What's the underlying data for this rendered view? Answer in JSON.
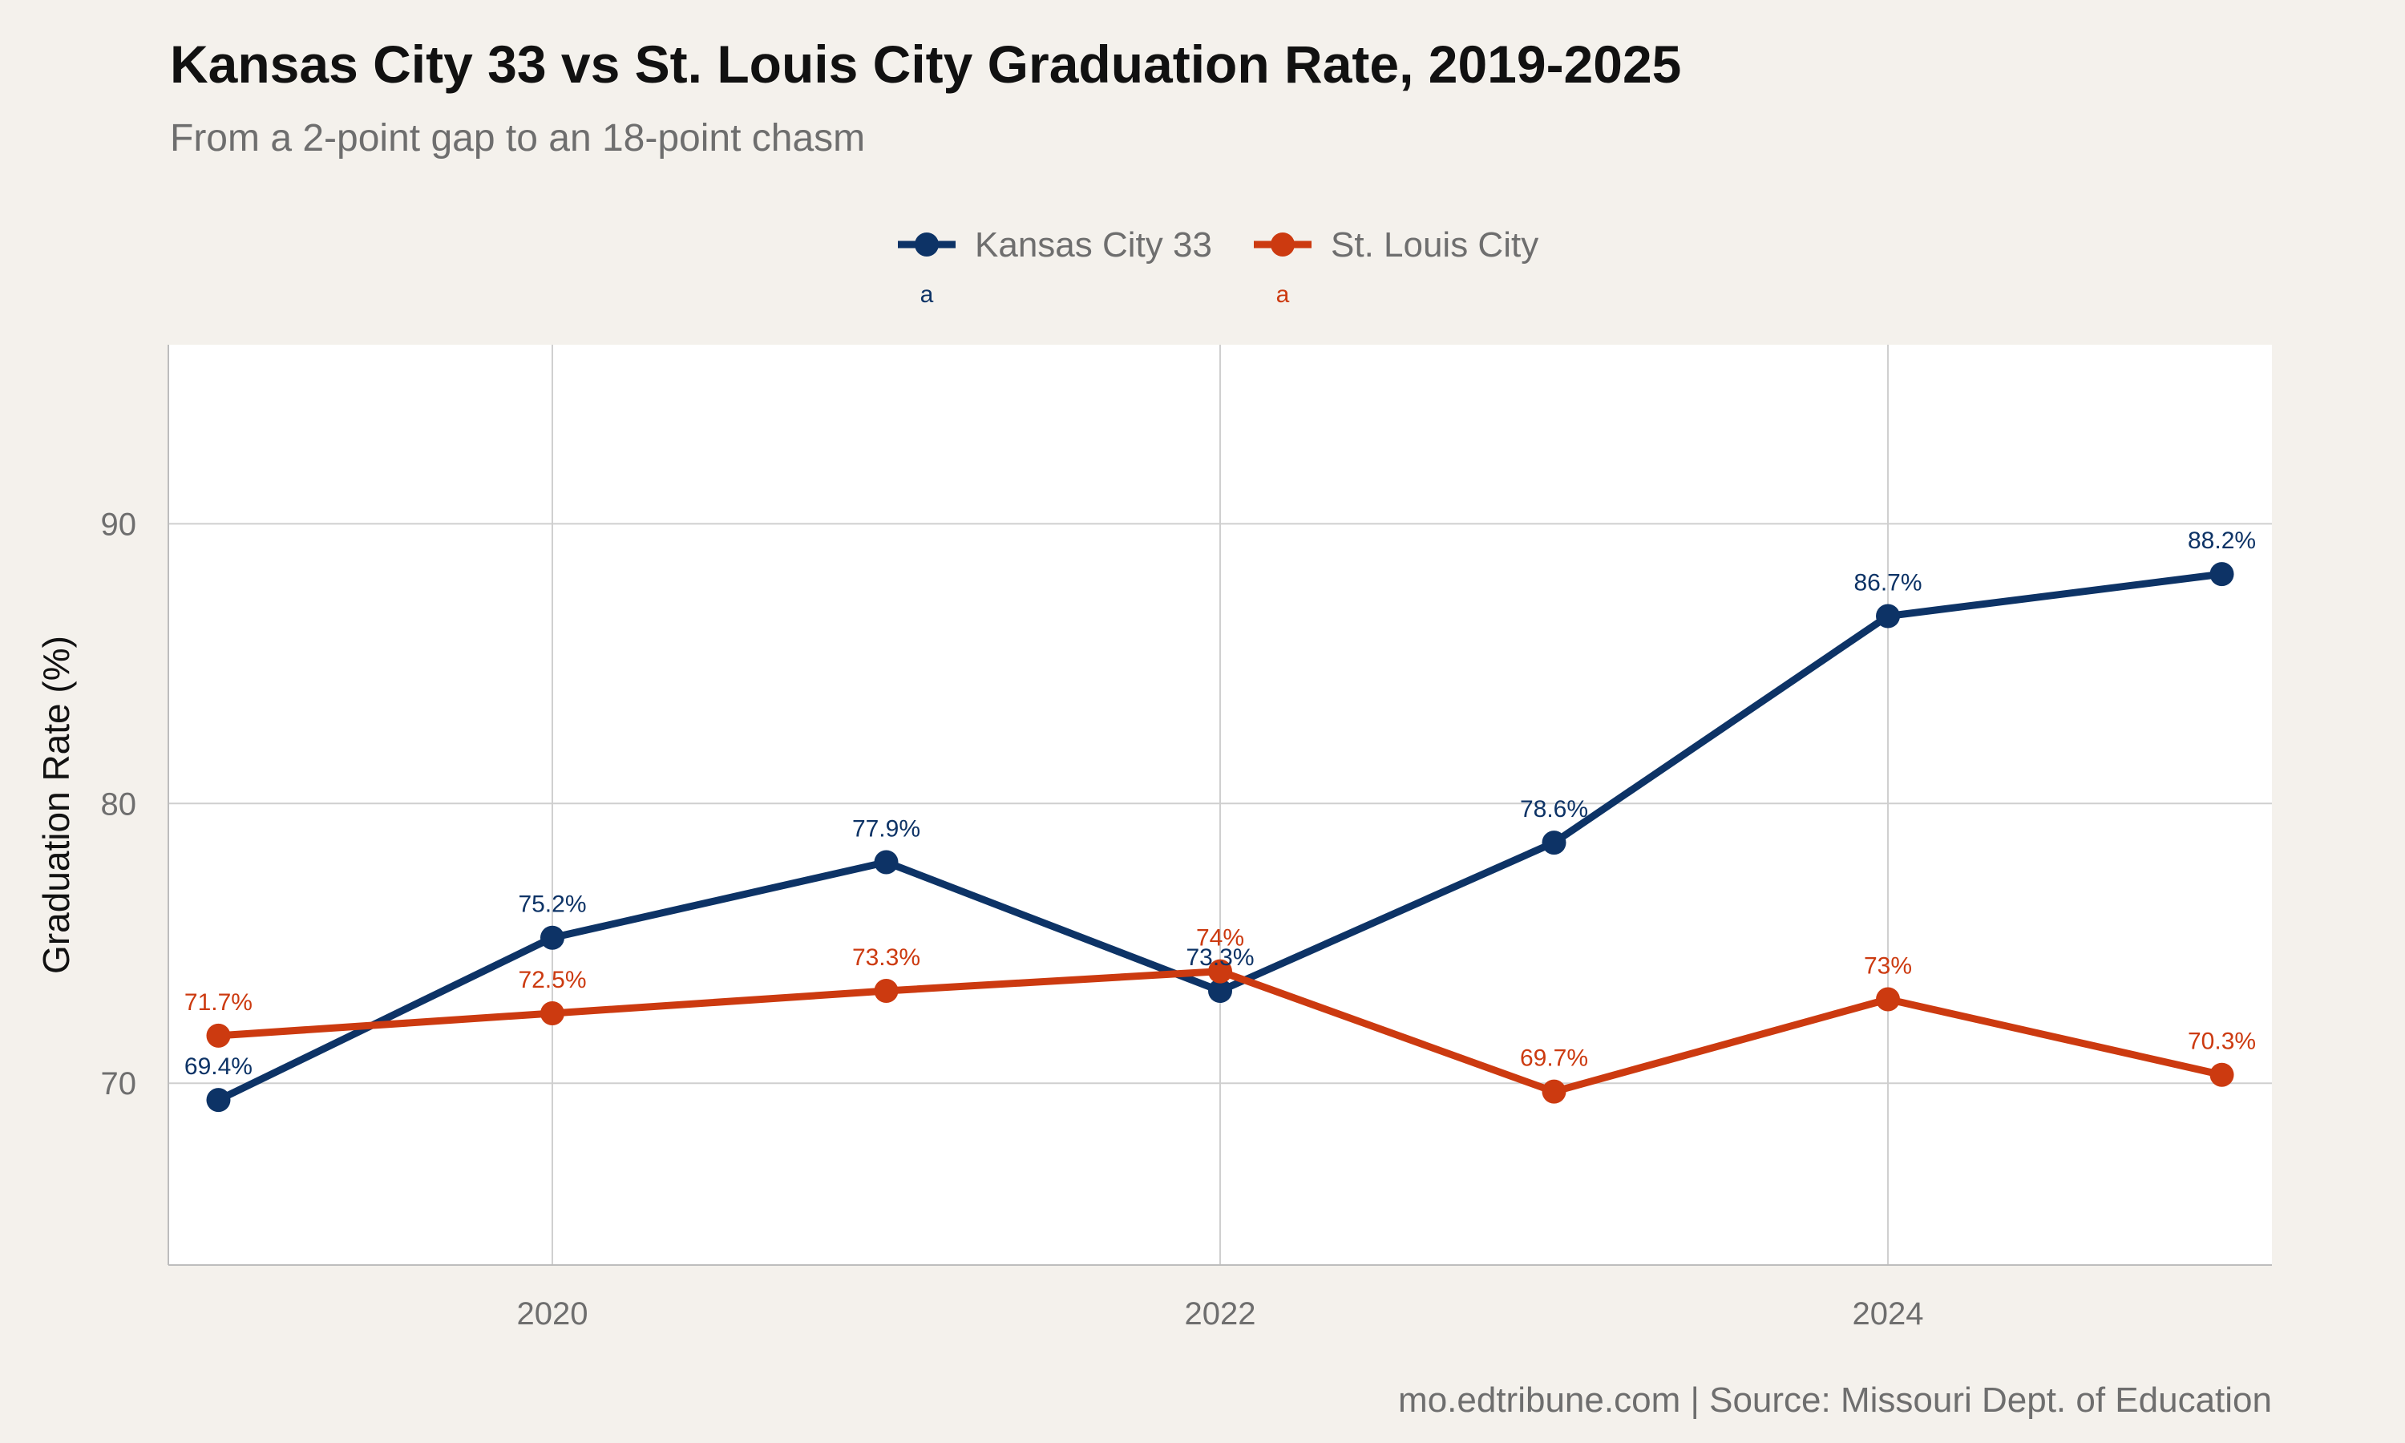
{
  "chart_data": {
    "type": "line",
    "title": "Kansas City 33 vs St. Louis City Graduation Rate, 2019-2025",
    "subtitle": "From a 2-point gap to an 18-point chasm",
    "xlabel": "",
    "ylabel": "Graduation Rate (%)",
    "caption": "mo.edtribune.com | Source: Missouri Dept. of Education",
    "x": [
      2019,
      2020,
      2021,
      2022,
      2023,
      2024,
      2025
    ],
    "xlim": [
      2018.85,
      2025.15
    ],
    "ylim": [
      63.5,
      96.4
    ],
    "x_ticks": [
      2020,
      2022,
      2024
    ],
    "y_ticks": [
      70,
      80,
      90
    ],
    "grid": true,
    "legend_position": "top",
    "legend_marker_text": "a",
    "series": [
      {
        "name": "Kansas City 33",
        "color": "#0d3366",
        "values": [
          69.4,
          75.2,
          77.9,
          73.3,
          78.6,
          86.7,
          88.2
        ],
        "labels": [
          "69.4%",
          "75.2%",
          "77.9%",
          "73.3%",
          "78.6%",
          "86.7%",
          "88.2%"
        ]
      },
      {
        "name": "St. Louis City",
        "color": "#cc3a10",
        "values": [
          71.7,
          72.5,
          73.3,
          74,
          69.7,
          73,
          70.3
        ],
        "labels": [
          "71.7%",
          "72.5%",
          "73.3%",
          "74%",
          "69.7%",
          "73%",
          "70.3%"
        ]
      }
    ]
  }
}
